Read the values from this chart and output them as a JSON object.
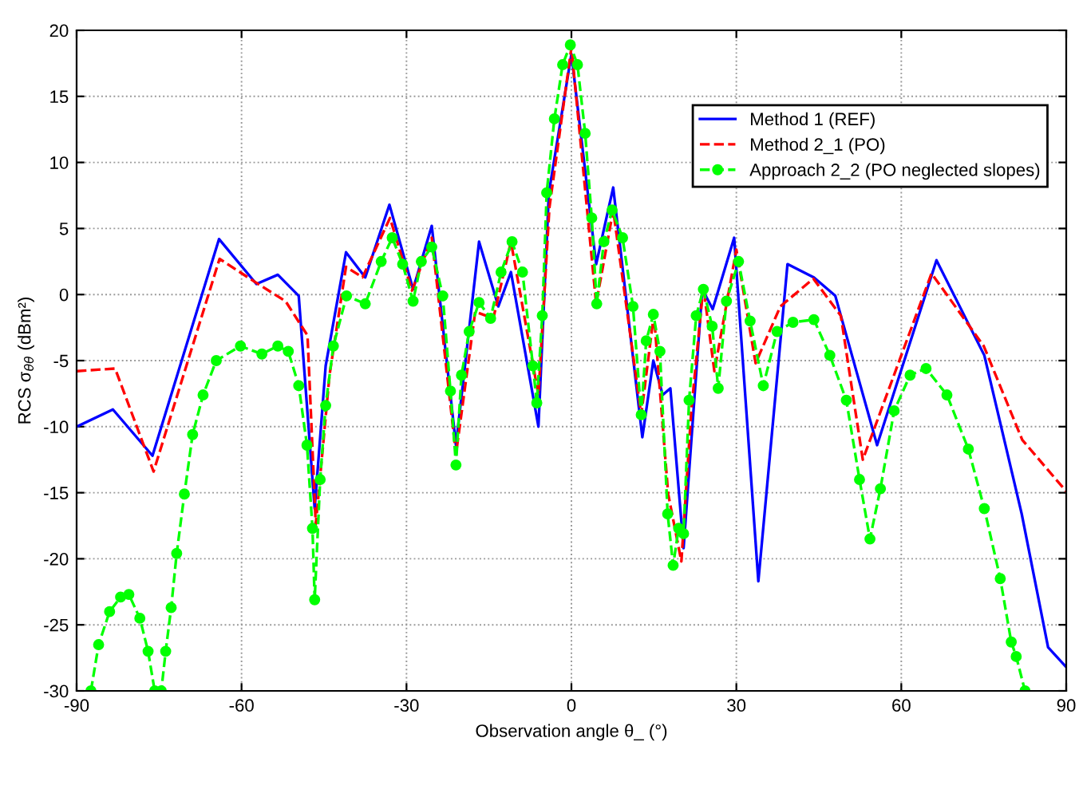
{
  "chart_data": {
    "type": "line",
    "xlabel": "Observation angle θ_ (°)",
    "ylabel": "RCS σ$_{θθ}$ (dBm²)",
    "xlim": [
      -90,
      90
    ],
    "xticks": [
      -90,
      -60,
      -30,
      0,
      30,
      60,
      90
    ],
    "ylim": [
      -30,
      20
    ],
    "yticks": [
      -30,
      -25,
      -20,
      -15,
      -10,
      -5,
      0,
      5,
      10,
      15,
      20
    ],
    "grid": true,
    "legend": "top right",
    "series": [
      {
        "name": "Method 1 (REF)",
        "color": "#0000ff",
        "line_style": "solid",
        "marker": "none",
        "x": [
          -90,
          -83.4,
          -76.2,
          -64.1,
          -57.3,
          -53.4,
          -49.6,
          -46.7,
          -44.7,
          -41,
          -37.5,
          -33.1,
          -28.8,
          -25.4,
          -21,
          -16.8,
          -13.3,
          -11,
          -6,
          -4.1,
          0,
          4.5,
          7.6,
          12.9,
          14.9,
          16.6,
          18,
          20.4,
          23.8,
          25.7,
          29.6,
          34,
          39.3,
          44.1,
          48,
          55.6,
          66.4,
          75.1,
          81.9,
          86.7,
          90
        ],
        "values": [
          -10,
          -8.7,
          -12.2,
          4.2,
          0.8,
          1.5,
          -0.1,
          -16.2,
          -5.4,
          3.2,
          1.3,
          6.8,
          0.4,
          5.2,
          -11.4,
          4,
          -0.9,
          1.7,
          -10,
          7.7,
          18.2,
          2.3,
          8.1,
          -10.8,
          -5,
          -7.6,
          -7.1,
          -19.2,
          0.4,
          -1.1,
          4.3,
          -21.7,
          2.3,
          1.3,
          -0.1,
          -11.4,
          2.6,
          -4.6,
          -16.6,
          -26.7,
          -28.2
        ]
      },
      {
        "name": "Method 2_1 (PO)",
        "color": "#ff0000",
        "line_style": "dashed",
        "marker": "none",
        "x": [
          -90,
          -83,
          -76,
          -64,
          -57,
          -52,
          -48,
          -46.5,
          -44,
          -41,
          -38,
          -33,
          -29,
          -25.4,
          -21,
          -17.5,
          -14.2,
          -11,
          -6,
          -4,
          0,
          4.5,
          7.6,
          12.7,
          15,
          17.6,
          20,
          21.8,
          24,
          26,
          30,
          33.5,
          38,
          44,
          49,
          53,
          65.5,
          75,
          82,
          90
        ],
        "values": [
          -5.8,
          -5.6,
          -13.4,
          2.7,
          0.8,
          -0.5,
          -3.1,
          -17.4,
          -6.1,
          2.1,
          1.3,
          5.8,
          0.3,
          4.3,
          -12.1,
          -1.3,
          -1.8,
          4,
          -7.6,
          6.6,
          18.7,
          -0.7,
          6.4,
          -9.1,
          -1.5,
          -15.1,
          -20.2,
          -8.8,
          0.6,
          -5.8,
          3.4,
          -5.2,
          -0.9,
          1.2,
          -1.6,
          -12.5,
          1.6,
          -3.9,
          -11,
          -14.9
        ]
      },
      {
        "name": "Approach 2_2 (PO neglected slopes)",
        "color": "#00ff00",
        "line_style": "dashed",
        "marker": "circle",
        "x": [
          -87.4,
          -86,
          -84,
          -82,
          -80.5,
          -78.5,
          -77,
          -75.8,
          -74.6,
          -73.8,
          -72.8,
          -71.8,
          -70.4,
          -68.9,
          -67,
          -64.6,
          -60.2,
          -56.3,
          -53.4,
          -51.5,
          -49.6,
          -48.1,
          -47.1,
          -46.7,
          -45.7,
          -44.7,
          -43.3,
          -40.9,
          -37.5,
          -34.6,
          -32.6,
          -30.7,
          -28.8,
          -27.3,
          -25.4,
          -23.4,
          -22,
          -21,
          -20,
          -18.6,
          -16.8,
          -14.7,
          -12.8,
          -10.8,
          -8.9,
          -7,
          -6.3,
          -5.3,
          -4.5,
          -3.1,
          -1.6,
          -0.2,
          1.1,
          2.5,
          3.7,
          4.6,
          5.9,
          7.4,
          9.3,
          11.2,
          12.7,
          13.6,
          14.9,
          16.1,
          17.5,
          18.5,
          19.5,
          20.4,
          21.4,
          22.7,
          24,
          25.6,
          26.7,
          28.2,
          30.4,
          32.5,
          34.9,
          37.4,
          40.3,
          44.1,
          47,
          50,
          52.4,
          54.3,
          56.2,
          58.7,
          61.6,
          64.5,
          68.3,
          72.2,
          75.1,
          78,
          80,
          80.9,
          82.5
        ],
        "values": [
          -30,
          -26.5,
          -24,
          -22.9,
          -22.7,
          -24.5,
          -27,
          -30,
          -30,
          -27,
          -23.7,
          -19.6,
          -15.1,
          -10.6,
          -7.6,
          -5,
          -3.9,
          -4.5,
          -3.9,
          -4.3,
          -6.9,
          -11.4,
          -17.7,
          -23.1,
          -14,
          -8.4,
          -3.9,
          -0.1,
          -0.7,
          2.5,
          4.3,
          2.3,
          -0.5,
          2.5,
          3.6,
          -0.1,
          -7.3,
          -12.9,
          -6.1,
          -2.8,
          -0.6,
          -1.8,
          1.7,
          4,
          1.7,
          -5.4,
          -8.2,
          -1.6,
          7.7,
          13.3,
          17.4,
          18.9,
          17.4,
          12.2,
          5.8,
          -0.7,
          4,
          6.4,
          4.3,
          -0.9,
          -9.1,
          -3.5,
          -1.5,
          -4.3,
          -16.6,
          -20.5,
          -17.7,
          -18.1,
          -8,
          -1.6,
          0.4,
          -2.4,
          -7.1,
          -0.5,
          2.5,
          -2,
          -6.9,
          -2.8,
          -2.1,
          -1.9,
          -4.6,
          -8,
          -14,
          -18.5,
          -14.7,
          -8.8,
          -6.1,
          -5.6,
          -7.6,
          -11.7,
          -16.2,
          -21.5,
          -26.3,
          -27.4,
          -30
        ]
      }
    ]
  }
}
